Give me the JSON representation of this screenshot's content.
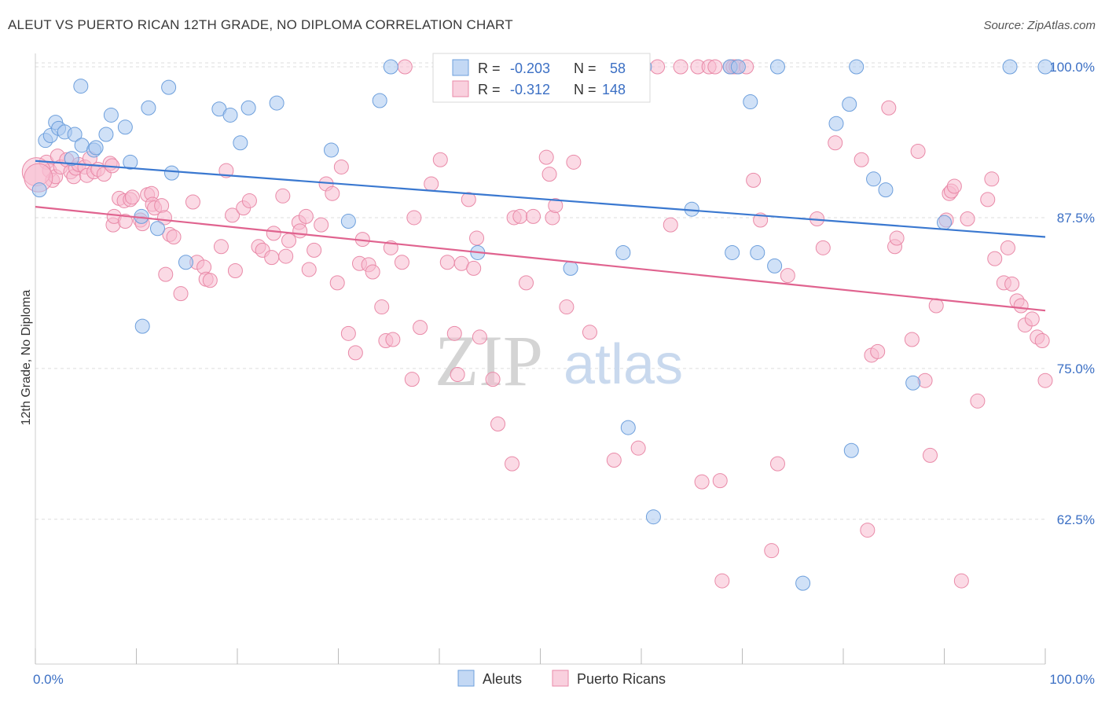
{
  "title": "ALEUT VS PUERTO RICAN 12TH GRADE, NO DIPLOMA CORRELATION CHART",
  "source": "Source: ZipAtlas.com",
  "watermark": {
    "zip": "ZIP",
    "atlas": "atlas"
  },
  "legend": {
    "r_label": "R =",
    "n_label": "N =",
    "rows": [
      {
        "r": "-0.203",
        "n": "58",
        "color": "#a9c8f0",
        "stroke": "#6d9fdc"
      },
      {
        "r": "-0.312",
        "n": "148",
        "color": "#f7bcd0",
        "stroke": "#e98aa8"
      }
    ]
  },
  "bottom_legend": [
    "Aleuts",
    "Puerto Ricans"
  ],
  "chart_data": {
    "type": "scatter",
    "xlabel": "",
    "ylabel": "12th Grade, No Diploma",
    "xlim": [
      0,
      100
    ],
    "ylim": [
      50.5,
      101.5
    ],
    "x_tick_labels": [
      {
        "value": 0,
        "label": "0.0%"
      },
      {
        "value": 100,
        "label": "100.0%"
      }
    ],
    "y_tick_labels": [
      {
        "value": 100,
        "label": "100.0%"
      },
      {
        "value": 87.5,
        "label": "87.5%"
      },
      {
        "value": 75,
        "label": "75.0%"
      },
      {
        "value": 62.5,
        "label": "62.5%"
      }
    ],
    "colors": {
      "aleut": "#3a78d0",
      "puerto": "#e0638f",
      "grid": "#dddddd"
    },
    "series": [
      {
        "name": "Aleuts",
        "trend": [
          [
            0,
            92.2
          ],
          [
            100,
            85.9
          ]
        ],
        "points": [
          [
            0.4,
            89.8
          ],
          [
            1,
            93.9
          ],
          [
            1.5,
            94.3
          ],
          [
            2,
            95.4
          ],
          [
            2.3,
            94.9
          ],
          [
            2.9,
            94.6
          ],
          [
            3.6,
            92.4
          ],
          [
            3.9,
            94.4
          ],
          [
            4.5,
            98.4
          ],
          [
            4.6,
            93.5
          ],
          [
            5.8,
            93.1
          ],
          [
            6,
            93.3
          ],
          [
            7,
            94.4
          ],
          [
            7.5,
            96
          ],
          [
            8.9,
            95
          ],
          [
            9.4,
            92.1
          ],
          [
            10.5,
            87.6
          ],
          [
            10.6,
            78.5
          ],
          [
            11.2,
            96.6
          ],
          [
            12.1,
            86.6
          ],
          [
            13.2,
            98.3
          ],
          [
            13.5,
            91.2
          ],
          [
            14.9,
            83.8
          ],
          [
            18.2,
            96.5
          ],
          [
            19.3,
            96
          ],
          [
            20.3,
            93.7
          ],
          [
            21.1,
            96.6
          ],
          [
            23.9,
            97
          ],
          [
            29.3,
            93.1
          ],
          [
            31,
            87.2
          ],
          [
            34.1,
            97.2
          ],
          [
            35.2,
            100
          ],
          [
            43.8,
            84.6
          ],
          [
            47.6,
            100
          ],
          [
            53,
            83.3
          ],
          [
            55.3,
            100
          ],
          [
            56.7,
            100
          ],
          [
            58.2,
            84.6
          ],
          [
            58.7,
            70.1
          ],
          [
            60.3,
            100
          ],
          [
            61.2,
            62.7
          ],
          [
            65,
            88.2
          ],
          [
            68.8,
            100
          ],
          [
            69,
            84.6
          ],
          [
            69.6,
            100
          ],
          [
            70.8,
            97.1
          ],
          [
            71.5,
            84.6
          ],
          [
            73.2,
            83.5
          ],
          [
            73.5,
            100
          ],
          [
            76,
            57.2
          ],
          [
            79.3,
            95.3
          ],
          [
            80.6,
            96.9
          ],
          [
            80.8,
            68.2
          ],
          [
            81.3,
            100
          ],
          [
            83,
            90.7
          ],
          [
            84.2,
            89.8
          ],
          [
            86.9,
            73.8
          ],
          [
            90,
            87.1
          ],
          [
            96.5,
            100
          ],
          [
            100,
            100
          ]
        ],
        "big": []
      },
      {
        "name": "Puerto Ricans",
        "trend": [
          [
            0,
            88.4
          ],
          [
            100,
            79.8
          ]
        ],
        "points": [
          [
            1.1,
            92.1
          ],
          [
            1.4,
            91.4
          ],
          [
            1.7,
            90.6
          ],
          [
            2,
            90.9
          ],
          [
            2.2,
            92.6
          ],
          [
            2.5,
            91.7
          ],
          [
            3.1,
            92.3
          ],
          [
            3.5,
            91.3
          ],
          [
            3.8,
            90.9
          ],
          [
            4,
            91.6
          ],
          [
            4.3,
            91.9
          ],
          [
            4.9,
            91.7
          ],
          [
            5.1,
            91
          ],
          [
            5.4,
            92.4
          ],
          [
            5.8,
            91.3
          ],
          [
            6.2,
            91.5
          ],
          [
            6.8,
            91.1
          ],
          [
            7.4,
            92
          ],
          [
            7.6,
            91.8
          ],
          [
            7.7,
            86.9
          ],
          [
            7.8,
            87.6
          ],
          [
            8.3,
            89.1
          ],
          [
            8.8,
            88.9
          ],
          [
            8.9,
            87.2
          ],
          [
            9.4,
            89
          ],
          [
            9.6,
            89.2
          ],
          [
            10.4,
            87.3
          ],
          [
            10.6,
            87
          ],
          [
            11.1,
            89.4
          ],
          [
            11.5,
            89.5
          ],
          [
            11.6,
            88.6
          ],
          [
            11.8,
            88.3
          ],
          [
            12.5,
            88.5
          ],
          [
            12.8,
            87.5
          ],
          [
            12.9,
            82.8
          ],
          [
            13.3,
            86.1
          ],
          [
            13.7,
            85.9
          ],
          [
            14.4,
            81.2
          ],
          [
            15.6,
            88.8
          ],
          [
            16,
            83.8
          ],
          [
            16.7,
            83.4
          ],
          [
            16.9,
            82.4
          ],
          [
            17.3,
            82.3
          ],
          [
            18.4,
            85.1
          ],
          [
            18.9,
            91.4
          ],
          [
            19.5,
            87.7
          ],
          [
            19.8,
            83.1
          ],
          [
            20.6,
            88.3
          ],
          [
            21.2,
            88.9
          ],
          [
            22.1,
            85.1
          ],
          [
            22.5,
            84.8
          ],
          [
            23.4,
            84.2
          ],
          [
            23.6,
            86.2
          ],
          [
            24.5,
            89.3
          ],
          [
            24.8,
            84.3
          ],
          [
            25.1,
            85.6
          ],
          [
            26.1,
            87.1
          ],
          [
            26.2,
            86.4
          ],
          [
            26.8,
            87.6
          ],
          [
            27.1,
            83.2
          ],
          [
            27.6,
            84.8
          ],
          [
            28.3,
            86.9
          ],
          [
            28.8,
            90.3
          ],
          [
            29.4,
            89.5
          ],
          [
            29.9,
            82.1
          ],
          [
            30.3,
            91.7
          ],
          [
            31,
            77.9
          ],
          [
            31.7,
            76.3
          ],
          [
            32.1,
            83.7
          ],
          [
            32.4,
            85.7
          ],
          [
            33,
            83.6
          ],
          [
            33.4,
            83
          ],
          [
            34.3,
            80.1
          ],
          [
            34.7,
            77.3
          ],
          [
            35.2,
            85
          ],
          [
            35.4,
            77.4
          ],
          [
            36.3,
            83.8
          ],
          [
            36.6,
            100
          ],
          [
            37.3,
            74.1
          ],
          [
            37.5,
            87.5
          ],
          [
            38.1,
            78.4
          ],
          [
            39.2,
            90.3
          ],
          [
            40.1,
            92.3
          ],
          [
            40.8,
            83.8
          ],
          [
            41.5,
            77.9
          ],
          [
            41.8,
            74.5
          ],
          [
            42.2,
            83.7
          ],
          [
            42.9,
            89
          ],
          [
            43.4,
            83.3
          ],
          [
            43.7,
            85.8
          ],
          [
            44,
            77.6
          ],
          [
            44.9,
            100
          ],
          [
            45.3,
            74.1
          ],
          [
            45.8,
            70.4
          ],
          [
            47.2,
            67.1
          ],
          [
            47.4,
            87.5
          ],
          [
            48,
            87.6
          ],
          [
            48.6,
            82.1
          ],
          [
            49.3,
            87.6
          ],
          [
            50.6,
            92.5
          ],
          [
            50.9,
            91.1
          ],
          [
            51.2,
            87.5
          ],
          [
            51.5,
            88.5
          ],
          [
            52.6,
            80.1
          ],
          [
            53.3,
            92.1
          ],
          [
            54.9,
            78
          ],
          [
            56.3,
            100
          ],
          [
            57.3,
            67.4
          ],
          [
            58,
            100
          ],
          [
            59.7,
            68.4
          ],
          [
            61.6,
            100
          ],
          [
            62.9,
            86.9
          ],
          [
            63.9,
            100
          ],
          [
            65.6,
            100
          ],
          [
            66,
            65.6
          ],
          [
            66.7,
            100
          ],
          [
            67.3,
            100
          ],
          [
            67.8,
            65.7
          ],
          [
            68,
            57.4
          ],
          [
            68.8,
            100
          ],
          [
            69.1,
            100
          ],
          [
            69.4,
            100
          ],
          [
            70.4,
            100
          ],
          [
            71.1,
            90.6
          ],
          [
            71.8,
            87.3
          ],
          [
            72.9,
            59.9
          ],
          [
            73.5,
            67.1
          ],
          [
            74.5,
            82.7
          ],
          [
            77.4,
            87.4
          ],
          [
            78,
            85
          ],
          [
            79.2,
            93.7
          ],
          [
            81.8,
            92.3
          ],
          [
            82.4,
            61.6
          ],
          [
            82.8,
            76.1
          ],
          [
            83.4,
            76.4
          ],
          [
            84.5,
            96.6
          ],
          [
            85.1,
            85.1
          ],
          [
            85.3,
            85.8
          ],
          [
            86.8,
            77.4
          ],
          [
            87.4,
            93
          ],
          [
            88.1,
            74
          ],
          [
            88.6,
            67.8
          ],
          [
            89.2,
            80.2
          ],
          [
            90.2,
            87.3
          ],
          [
            90.5,
            89.5
          ],
          [
            90.7,
            89.7
          ],
          [
            91,
            90.1
          ],
          [
            91.7,
            57.4
          ],
          [
            92.3,
            87.4
          ],
          [
            93.3,
            72.3
          ],
          [
            94.3,
            89
          ],
          [
            94.7,
            90.7
          ],
          [
            95,
            84.1
          ],
          [
            95.9,
            82.1
          ],
          [
            96.3,
            85
          ],
          [
            96.7,
            82
          ],
          [
            97.2,
            80.6
          ],
          [
            97.6,
            80.2
          ],
          [
            98,
            78.6
          ],
          [
            98.7,
            79.1
          ],
          [
            99.2,
            77.6
          ],
          [
            99.7,
            77.3
          ],
          [
            100,
            74
          ]
        ],
        "big": [
          [
            0.1,
            91.3
          ],
          [
            0.3,
            90.8
          ]
        ]
      }
    ]
  }
}
